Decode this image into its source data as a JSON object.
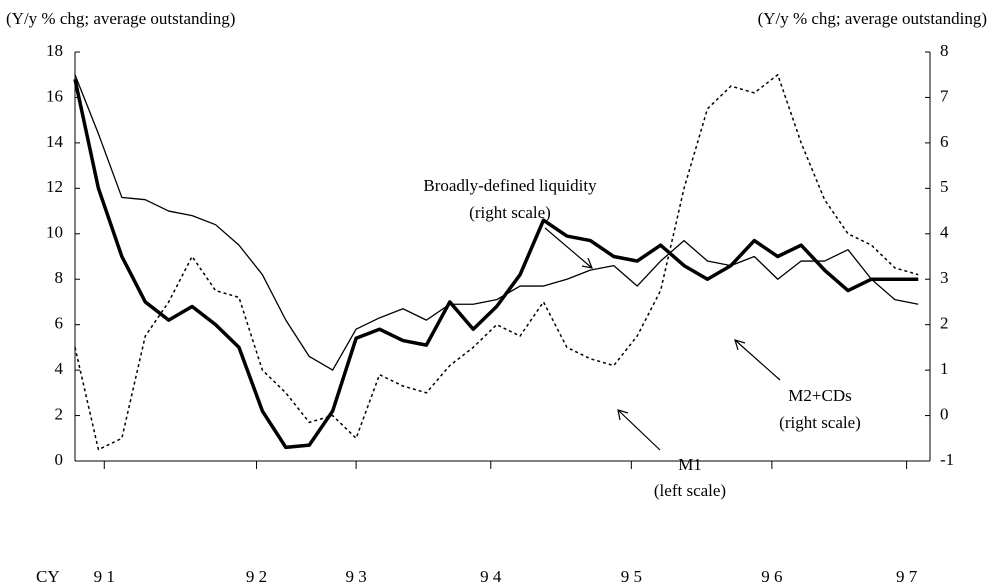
{
  "chart_data": {
    "type": "line",
    "y_label": "(Y/y % chg; average outstanding)",
    "y2_label": "(Y/y % chg; average outstanding)",
    "x_label": "CY",
    "x": [
      0,
      2,
      4,
      6,
      8,
      10,
      12,
      14,
      16,
      18,
      20,
      22,
      24,
      26,
      28,
      30,
      32,
      34,
      36,
      38,
      40,
      42,
      44,
      46,
      48,
      50,
      52,
      54,
      56,
      58,
      60,
      62,
      64,
      66,
      68,
      70,
      72
    ],
    "xlim": [
      0,
      73
    ],
    "xticks": [
      {
        "value": 2.5,
        "label": "9 1"
      },
      {
        "value": 15.5,
        "label": "9 2"
      },
      {
        "value": 24,
        "label": "9 3"
      },
      {
        "value": 35.5,
        "label": "9 4"
      },
      {
        "value": 47.5,
        "label": "9 5"
      },
      {
        "value": 59.5,
        "label": "9 6"
      },
      {
        "value": 71,
        "label": "9 7"
      }
    ],
    "ylim": [
      0,
      18
    ],
    "yticks": [
      0,
      2,
      4,
      6,
      8,
      10,
      12,
      14,
      16,
      18
    ],
    "y2lim": [
      -1,
      8
    ],
    "y2ticks": [
      -1,
      0,
      1,
      2,
      3,
      4,
      5,
      6,
      7,
      8
    ],
    "series": [
      {
        "name": "M1",
        "color": "#000000",
        "dashed": true,
        "width": 1.5,
        "values": [
          5,
          0.5,
          1,
          5.5,
          7,
          9,
          7.5,
          7.2,
          4,
          3,
          1.7,
          2,
          1,
          3.8,
          3.3,
          3,
          4.2,
          5,
          6,
          5.5,
          7,
          5,
          4.5,
          4.2,
          5.5,
          7.5,
          12,
          15.5,
          16.5,
          16.2,
          17,
          14,
          11.5,
          10,
          9.5,
          8.5,
          8.2
        ]
      },
      {
        "name": "M2+CDs",
        "color": "#000000",
        "dashed": false,
        "width": 3.5,
        "axis": "y2",
        "values": [
          7.4,
          5.0,
          3.5,
          2.5,
          2.1,
          2.4,
          2.0,
          1.5,
          0.1,
          -0.7,
          -0.65,
          0.1,
          1.7,
          1.9,
          1.65,
          1.55,
          2.5,
          1.9,
          2.4,
          3.1,
          4.3,
          3.95,
          3.85,
          3.5,
          3.4,
          3.75,
          3.3,
          3.0,
          3.3,
          3.85,
          3.5,
          3.75,
          3.2,
          2.75,
          3.0,
          3.0,
          3.0
        ]
      },
      {
        "name": "Broadly-defined liquidity",
        "color": "#000000",
        "dashed": false,
        "width": 1.3,
        "axis": "y2",
        "values": [
          7.5,
          6.2,
          4.8,
          4.75,
          4.5,
          4.4,
          4.2,
          3.75,
          3.1,
          2.1,
          1.3,
          1.0,
          1.9,
          2.15,
          2.35,
          2.1,
          2.45,
          2.45,
          2.55,
          2.85,
          2.85,
          3.0,
          3.2,
          3.3,
          2.85,
          3.4,
          3.85,
          3.4,
          3.3,
          3.5,
          3.0,
          3.4,
          3.4,
          3.65,
          3.0,
          2.55,
          2.45
        ]
      }
    ],
    "annotations": [
      "Broadly-defined liquidity",
      "(right scale)",
      "M2+CDs",
      "(right scale)",
      "M1",
      "(left scale)"
    ]
  }
}
